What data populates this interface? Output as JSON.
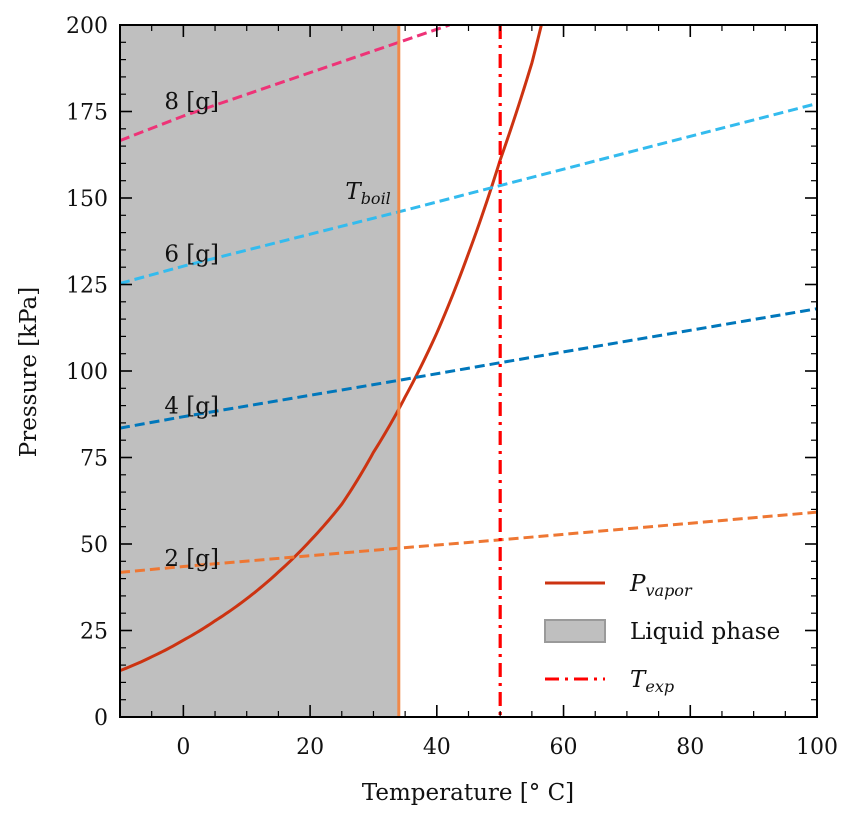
{
  "chart_data": {
    "type": "line",
    "xlabel": "Temperature [° C]",
    "ylabel": "Pressure [kPa]",
    "xlim": [
      -10,
      100
    ],
    "ylim": [
      0,
      200
    ],
    "xticks": [
      0,
      20,
      40,
      60,
      80,
      100
    ],
    "yticks": [
      0,
      25,
      50,
      75,
      100,
      125,
      150,
      175,
      200
    ],
    "grid": false,
    "legend_placement": "bottom-right",
    "shaded_region": {
      "name": "Liquid phase",
      "x_from": -10,
      "x_to": 34,
      "color": "#bfbfbf"
    },
    "vertical_lines": [
      {
        "name": "T_boil",
        "label_text": "T",
        "label_sub": "boil",
        "x": 34,
        "color": "#f0894a",
        "style": "solid"
      },
      {
        "name": "T_exp",
        "x": 50,
        "color": "#ff0000",
        "style": "dashdot"
      }
    ],
    "series": [
      {
        "name": "P_vapor",
        "color": "#cc3311",
        "style": "solid",
        "x": [
          -10,
          -5,
          0,
          5,
          10,
          15,
          20,
          25,
          30,
          34,
          35,
          40,
          45,
          50,
          55,
          56.5
        ],
        "y": [
          13.4,
          17.4,
          22.2,
          27.8,
          34.2,
          41.9,
          50.9,
          61.5,
          76.5,
          89.0,
          92.5,
          111,
          134,
          161,
          189,
          200
        ]
      },
      {
        "name": "2 [g]",
        "color": "#ee7733",
        "style": "dashed",
        "x": [
          -10,
          0,
          34,
          50,
          100
        ],
        "y": [
          41.8,
          43.5,
          48.8,
          51.2,
          59.2
        ]
      },
      {
        "name": "4 [g]",
        "color": "#0077bb",
        "style": "dashed",
        "x": [
          -10,
          0,
          34,
          50,
          100
        ],
        "y": [
          83.5,
          86.8,
          97.3,
          102.4,
          118
        ]
      },
      {
        "name": "6 [g]",
        "color": "#33bbee",
        "style": "dashed",
        "x": [
          -10,
          0,
          34,
          50,
          100
        ],
        "y": [
          125.3,
          130.3,
          146,
          153.6,
          177.3
        ]
      },
      {
        "name": "8 [g]",
        "color": "#ee3377",
        "style": "dashed",
        "x": [
          -10,
          0,
          34,
          42
        ],
        "y": [
          166.6,
          173.7,
          195,
          200
        ]
      }
    ],
    "annotations": [
      {
        "text": "8 [g]",
        "x": -3,
        "y": 178
      },
      {
        "text": "6 [g]",
        "x": -3,
        "y": 134
      },
      {
        "text": "4 [g]",
        "x": -3,
        "y": 90
      },
      {
        "text": "2 [g]",
        "x": -3,
        "y": 46
      }
    ],
    "legend": [
      {
        "label_main": "P",
        "label_sub": "vapor",
        "kind": "line",
        "color": "#cc3311"
      },
      {
        "label_main": "Liquid phase",
        "label_sub": "",
        "kind": "patch",
        "color": "#bfbfbf"
      },
      {
        "label_main": "T",
        "label_sub": "exp",
        "kind": "dashdot",
        "color": "#ff0000"
      }
    ]
  }
}
